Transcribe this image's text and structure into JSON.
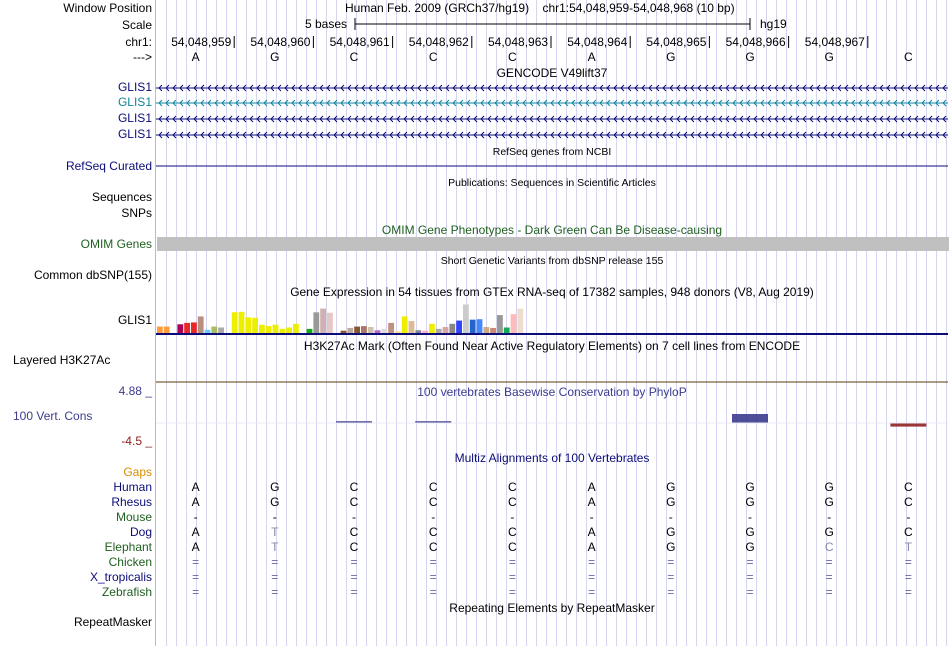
{
  "browser": {
    "window_position_label": "Window Position",
    "window_position_text": "Human Feb. 2009 (GRCh37/hg19)    chr1:54,048,959-54,048,968 (10 bp)",
    "scale_label": "Scale",
    "scale_text": "5 bases",
    "assembly": "hg19",
    "chrom_label": "chr1:",
    "strand_label": "--->",
    "positions": [
      "54,048,959",
      "54,048,960",
      "54,048,961",
      "54,048,962",
      "54,048,963",
      "54,048,964",
      "54,048,965",
      "54,048,966",
      "54,048,967"
    ],
    "bases": [
      "A",
      "G",
      "C",
      "C",
      "C",
      "A",
      "G",
      "G",
      "G",
      "C"
    ]
  },
  "gencode": {
    "title": "GENCODE V49lift37",
    "track_labels": [
      "GLIS1",
      "GLIS1",
      "GLIS1",
      "GLIS1"
    ],
    "colors": [
      "#0c0c78",
      "#11849f",
      "#0c0c78",
      "#0c0c78"
    ]
  },
  "refseq": {
    "label": "RefSeq Curated",
    "title": "RefSeq genes from NCBI"
  },
  "publications": {
    "label": "Sequences",
    "title": "Publications: Sequences in Scientific Articles"
  },
  "snps": {
    "label": "SNPs"
  },
  "omim": {
    "label": "OMIM Genes",
    "title": "OMIM Gene Phenotypes - Dark Green Can Be Disease-causing"
  },
  "dbsnp": {
    "label": "Common dbSNP(155)",
    "title": "Short Genetic Variants from dbSNP release 155"
  },
  "gtex": {
    "label": "GLIS1",
    "title": "Gene Expression in 54 tissues from GTEx RNA-seq of 17382 samples, 948 donors (V8, Aug 2019)",
    "values": [
      1.4,
      1.4,
      0,
      1.9,
      2.2,
      2.3,
      3.6,
      0.7,
      1.4,
      1.2,
      0,
      4.5,
      4.6,
      3.4,
      3.3,
      1.8,
      1.5,
      1.8,
      0.9,
      1.2,
      2.0,
      0,
      0.9,
      4.5,
      5.3,
      4.4,
      0,
      0.5,
      1.1,
      1.4,
      1.5,
      1.3,
      0.6,
      0.9,
      2.2,
      0.4,
      3.6,
      2.6,
      0.6,
      0.5,
      2.0,
      0.9,
      1.3,
      2.0,
      2.7,
      6.2,
      2.9,
      3.0,
      1.3,
      1.1,
      3.9,
      1.2,
      4.1,
      5.3
    ],
    "colors": [
      "#ff9d3c",
      "#ff9d3c",
      "#ffffff",
      "#aa0055",
      "#e82828",
      "#e82828",
      "#b89080",
      "#66ccff",
      "#aabb66",
      "#aaaaaa",
      "#ffffff",
      "#eeee00",
      "#eeee00",
      "#eeee00",
      "#eeee00",
      "#eeee00",
      "#eeee00",
      "#eeee00",
      "#eeee00",
      "#eeee00",
      "#eeee00",
      "#ffffff",
      "#11aa11",
      "#999999",
      "#d0b0b0",
      "#e6c6c6",
      "#ffffff",
      "#885533",
      "#bbaa99",
      "#885533",
      "#aa7766",
      "#d0c0b0",
      "#bb66cc",
      "#dddddd",
      "#c09080",
      "#ffdd99",
      "#eeee00",
      "#ddbb99",
      "#778899",
      "#ffaacc",
      "#eeee00",
      "#aaaaaa",
      "#d7a5a5",
      "#888888",
      "#3344ff",
      "#cccccc",
      "#2266cc",
      "#4488ff",
      "#ccaa88",
      "#cc8877",
      "#999999",
      "#11aa55",
      "#ffbbbb",
      "#eeddcc"
    ]
  },
  "h3k27ac": {
    "label": "Layered H3K27Ac",
    "title": "H3K27Ac Mark (Often Found Near Active Regulatory Elements) on 7 cell lines from ENCODE"
  },
  "phylop": {
    "label": "100 Vert. Cons",
    "max_label": "4.88 _",
    "min_label": "-4.5 _",
    "title": "100 vertebrates Basewise Conservation by PhyloP",
    "scores": [
      0,
      0,
      0.3,
      0.3,
      0,
      0,
      0,
      1.5,
      0,
      -0.6
    ]
  },
  "multiz": {
    "gaps_label": "Gaps",
    "title": "Multiz Alignments of 100 Vertebrates",
    "species": [
      {
        "name": "Human",
        "color": "#0c0c78",
        "bases": [
          "A",
          "G",
          "C",
          "C",
          "C",
          "A",
          "G",
          "G",
          "G",
          "C"
        ],
        "base_colors": [
          "#000",
          "#000",
          "#000",
          "#000",
          "#000",
          "#000",
          "#000",
          "#000",
          "#000",
          "#000"
        ]
      },
      {
        "name": "Rhesus",
        "color": "#0c0c78",
        "bases": [
          "A",
          "G",
          "C",
          "C",
          "C",
          "A",
          "G",
          "G",
          "G",
          "C"
        ],
        "base_colors": [
          "#000",
          "#000",
          "#000",
          "#000",
          "#000",
          "#000",
          "#000",
          "#000",
          "#000",
          "#000"
        ]
      },
      {
        "name": "Mouse",
        "color": "#206020",
        "bases": [
          "-",
          "-",
          "-",
          "-",
          "-",
          "-",
          "-",
          "-",
          "-",
          "-"
        ],
        "base_colors": [
          "#000",
          "#000",
          "#000",
          "#000",
          "#000",
          "#000",
          "#000",
          "#000",
          "#000",
          "#000"
        ]
      },
      {
        "name": "Dog",
        "color": "#0c0c78",
        "bases": [
          "A",
          "T",
          "C",
          "C",
          "C",
          "A",
          "G",
          "G",
          "G",
          "C"
        ],
        "base_colors": [
          "#000",
          "#8888aa",
          "#000",
          "#000",
          "#000",
          "#000",
          "#000",
          "#000",
          "#000",
          "#000"
        ]
      },
      {
        "name": "Elephant",
        "color": "#206020",
        "bases": [
          "A",
          "T",
          "C",
          "C",
          "C",
          "A",
          "G",
          "G",
          "C",
          "T"
        ],
        "base_colors": [
          "#000",
          "#8888aa",
          "#000",
          "#000",
          "#000",
          "#000",
          "#000",
          "#000",
          "#8888aa",
          "#8888aa"
        ]
      },
      {
        "name": "Chicken",
        "color": "#206020",
        "bases": [
          "=",
          "=",
          "=",
          "=",
          "=",
          "=",
          "=",
          "=",
          "=",
          "="
        ],
        "base_colors": [
          "#6666aa",
          "#6666aa",
          "#6666aa",
          "#6666aa",
          "#6666aa",
          "#6666aa",
          "#6666aa",
          "#6666aa",
          "#6666aa",
          "#6666aa"
        ]
      },
      {
        "name": "X_tropicalis",
        "color": "#0c0c78",
        "bases": [
          "=",
          "=",
          "=",
          "=",
          "=",
          "=",
          "=",
          "=",
          "=",
          "="
        ],
        "base_colors": [
          "#6666aa",
          "#6666aa",
          "#6666aa",
          "#6666aa",
          "#6666aa",
          "#6666aa",
          "#6666aa",
          "#6666aa",
          "#6666aa",
          "#6666aa"
        ]
      },
      {
        "name": "Zebrafish",
        "color": "#206020",
        "bases": [
          "=",
          "=",
          "=",
          "=",
          "=",
          "=",
          "=",
          "=",
          "=",
          "="
        ],
        "base_colors": [
          "#6666aa",
          "#6666aa",
          "#6666aa",
          "#6666aa",
          "#6666aa",
          "#6666aa",
          "#6666aa",
          "#6666aa",
          "#6666aa",
          "#6666aa"
        ]
      }
    ]
  },
  "repeatmasker": {
    "label": "RepeatMasker",
    "title": "Repeating Elements by RepeatMasker"
  },
  "colors": {
    "gencode": "#0c0c78",
    "gencode_alt": "#11849f",
    "refseq": "#0c0c78",
    "omim_label": "#206020",
    "omim_bar": "#c0c0c0",
    "phylop": "#3b3b8f",
    "phylop_pos": "#3b3b8f",
    "phylop_neg": "#8f2020",
    "gaps": "#d98c00",
    "h3k27ac_line": "#5a3a0a",
    "gtex_line": "#0c0c78"
  }
}
